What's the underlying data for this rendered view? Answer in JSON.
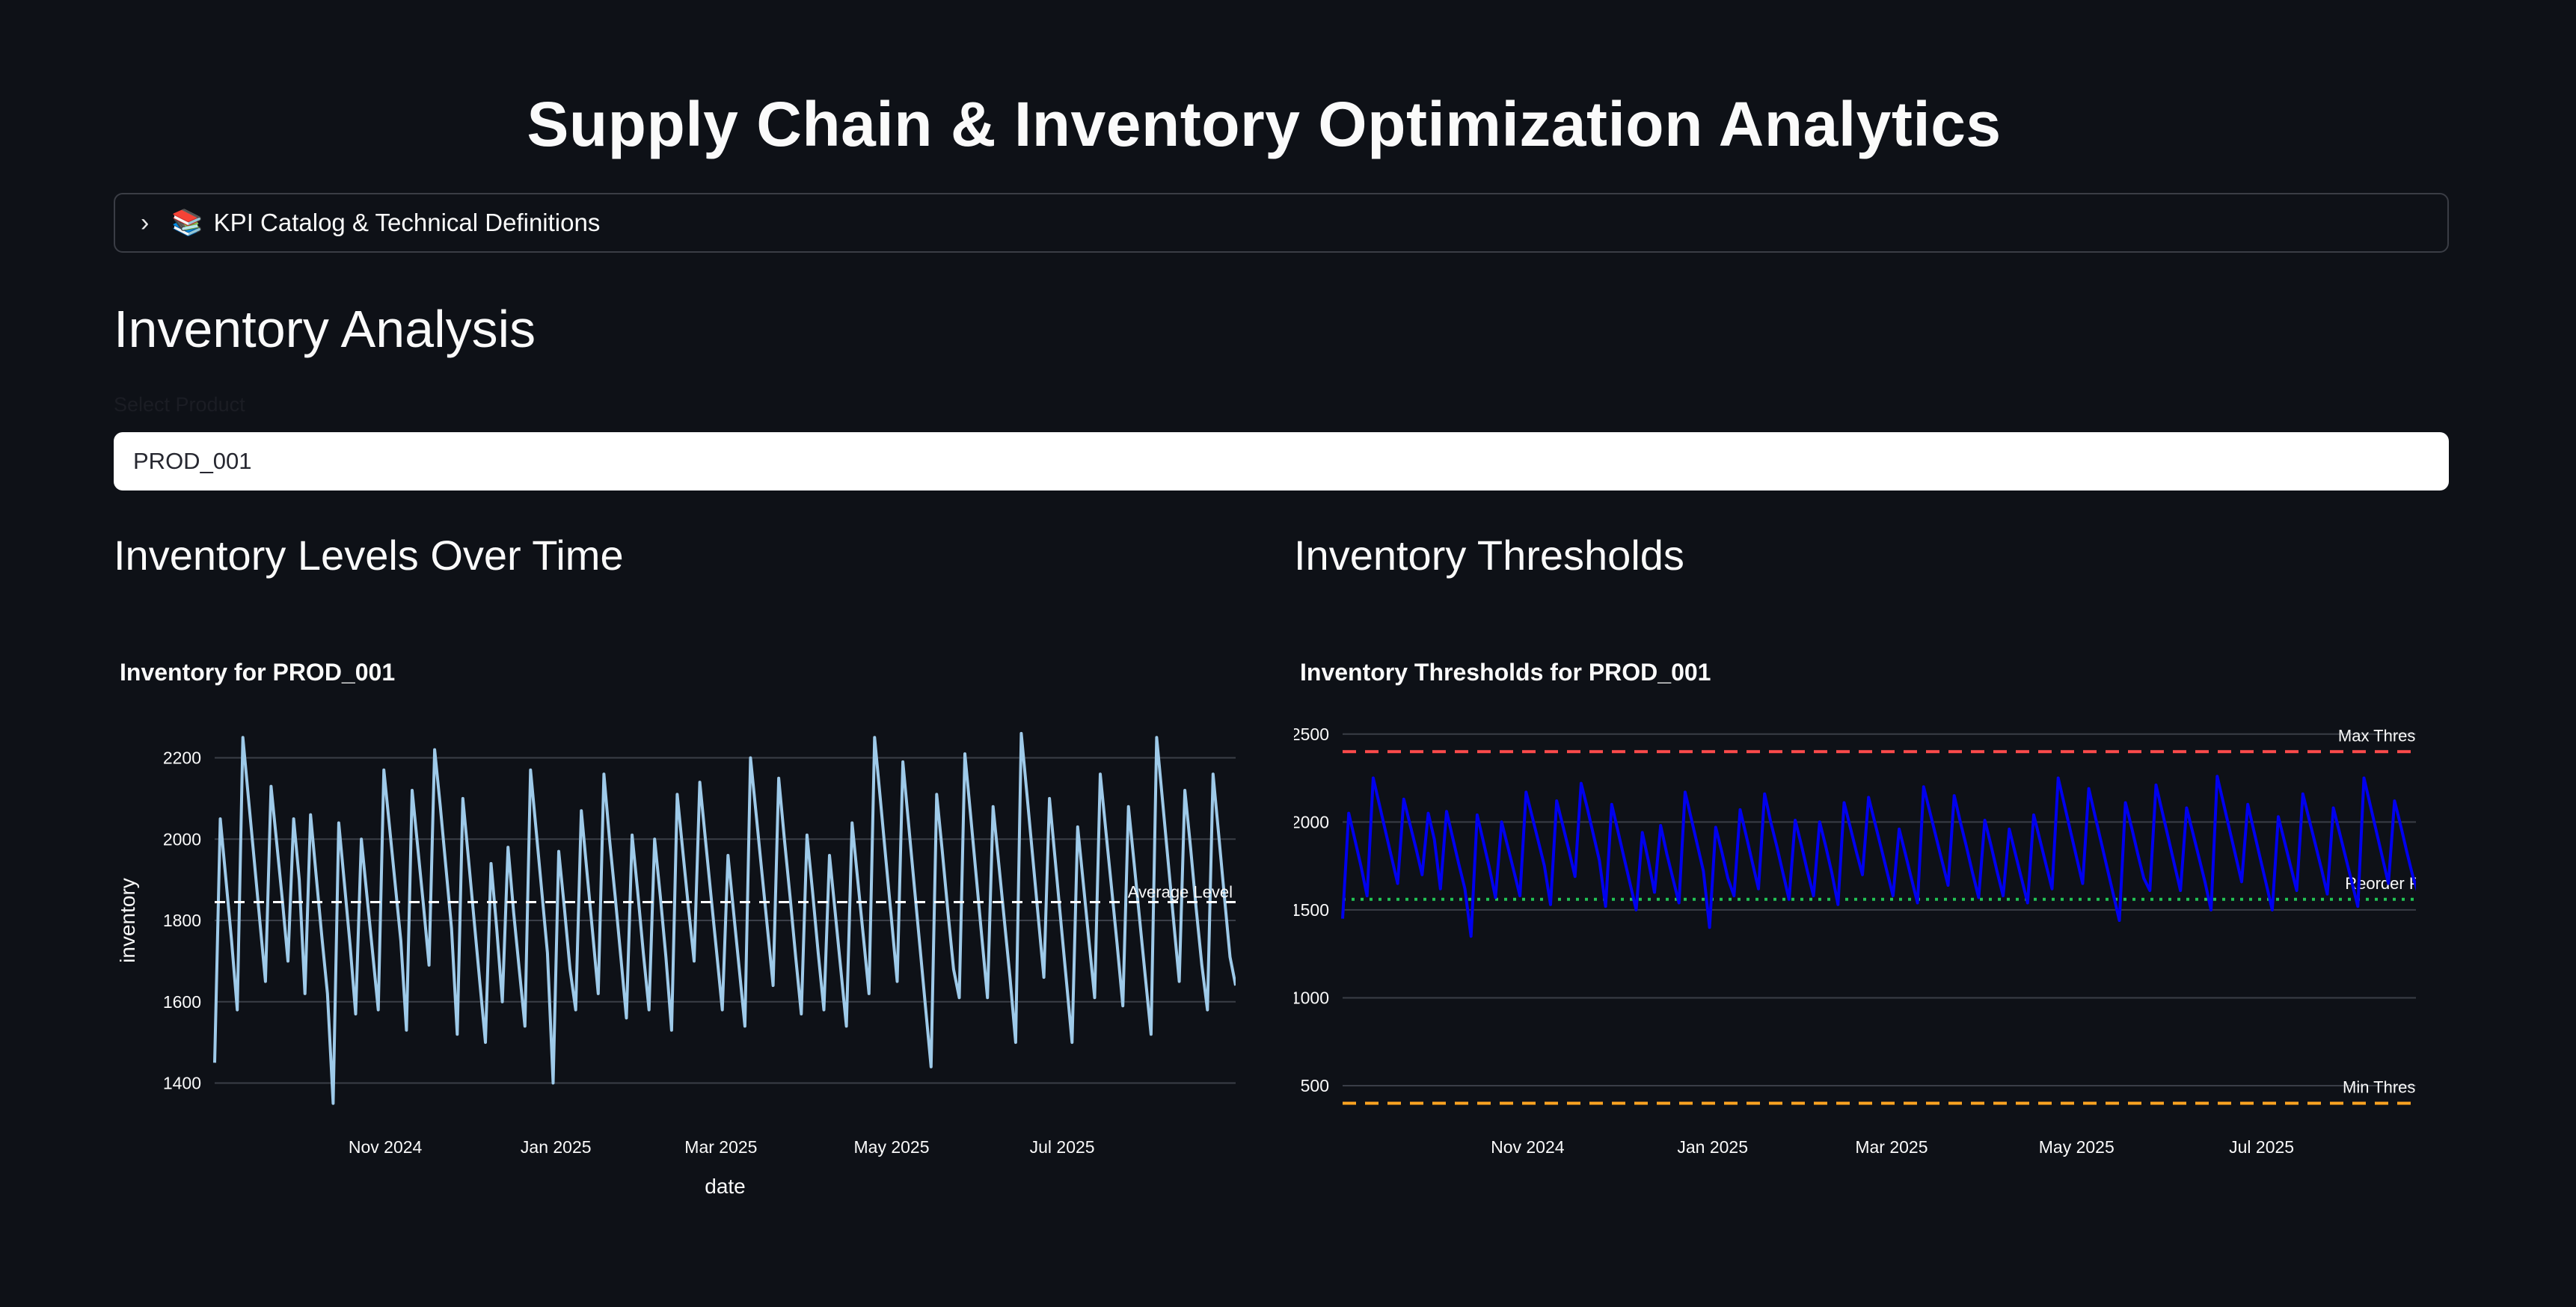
{
  "page": {
    "title": "Supply Chain & Inventory Optimization Analytics",
    "expander_icon": "books-icon",
    "expander_label": "KPI Catalog & Technical Definitions",
    "section_title": "Inventory Analysis",
    "select_label": "Select Product",
    "select_value": "PROD_001",
    "left_column_title": "Inventory Levels Over Time",
    "right_column_title": "Inventory Thresholds"
  },
  "chart_data": [
    {
      "type": "line",
      "title": "Inventory for PROD_001",
      "xlabel": "date",
      "ylabel": "inventory",
      "x_range": [
        "2024-09-01",
        "2025-09-01"
      ],
      "x_ticks": [
        "Nov 2024",
        "Jan 2025",
        "Mar 2025",
        "May 2025",
        "Jul 2025"
      ],
      "x_tick_dates": [
        "2024-11-01",
        "2025-01-01",
        "2025-03-01",
        "2025-05-01",
        "2025-07-01"
      ],
      "ylim": [
        1320,
        2280
      ],
      "y_ticks": [
        1400,
        1600,
        1800,
        2000,
        2200
      ],
      "grid": true,
      "series_color": "#9ecae9",
      "annotation": {
        "label": "Average Level",
        "value": 1845,
        "color": "#ffffff"
      },
      "series": [
        {
          "values": [
            1450,
            2050,
            1900,
            1750,
            1580,
            2250,
            2100,
            1950,
            1800,
            1650,
            2130,
            1990,
            1850,
            1700,
            2050,
            1900,
            1620,
            2060,
            1910,
            1760,
            1620,
            1350,
            2040,
            1890,
            1740,
            1570,
            2000,
            1860,
            1720,
            1580,
            2170,
            2030,
            1890,
            1750,
            1530,
            2120,
            1980,
            1840,
            1690,
            2220,
            2080,
            1930,
            1780,
            1520,
            2100,
            1950,
            1800,
            1650,
            1500,
            1940,
            1780,
            1600,
            1980,
            1820,
            1680,
            1540,
            2170,
            2020,
            1870,
            1720,
            1400,
            1970,
            1830,
            1680,
            1580,
            2070,
            1920,
            1770,
            1620,
            2160,
            2000,
            1860,
            1710,
            1560,
            2010,
            1870,
            1720,
            1580,
            2000,
            1860,
            1710,
            1530,
            2110,
            1970,
            1830,
            1700,
            2140,
            2000,
            1860,
            1720,
            1580,
            1960,
            1820,
            1680,
            1540,
            2200,
            2060,
            1920,
            1780,
            1640,
            2150,
            2000,
            1860,
            1710,
            1570,
            2010,
            1870,
            1720,
            1580,
            1960,
            1820,
            1680,
            1540,
            2040,
            1900,
            1760,
            1620,
            2250,
            2100,
            1950,
            1800,
            1650,
            2190,
            2040,
            1890,
            1740,
            1590,
            1440,
            2110,
            1970,
            1820,
            1680,
            1610,
            2210,
            2060,
            1910,
            1760,
            1610,
            2080,
            1940,
            1800,
            1660,
            1500,
            2260,
            2110,
            1960,
            1810,
            1660,
            2100,
            1950,
            1800,
            1650,
            1500,
            2030,
            1890,
            1750,
            1610,
            2160,
            2020,
            1880,
            1740,
            1590,
            2080,
            1940,
            1800,
            1660,
            1520,
            2250,
            2100,
            1950,
            1800,
            1650,
            2120,
            1980,
            1830,
            1690,
            1580,
            2160,
            2010,
            1860,
            1710,
            1640
          ]
        }
      ]
    },
    {
      "type": "line",
      "title": "Inventory Thresholds for PROD_001",
      "xlabel": "",
      "ylabel": "",
      "x_range": [
        "2024-09-01",
        "2025-09-01"
      ],
      "x_ticks": [
        "Nov 2024",
        "Jan 2025",
        "Mar 2025",
        "May 2025",
        "Jul 2025"
      ],
      "x_tick_dates": [
        "2024-11-01",
        "2025-01-01",
        "2025-03-01",
        "2025-05-01",
        "2025-07-01"
      ],
      "ylim": [
        330,
        2550
      ],
      "y_ticks": [
        500,
        1000,
        1500,
        2000,
        2500
      ],
      "grid": true,
      "series_color": "#0000ee",
      "thresholds": [
        {
          "label": "Max Threshold",
          "value": 2400,
          "color": "#ff4b4b",
          "dash": "long"
        },
        {
          "label": "Reorder Point",
          "value": 1560,
          "color": "#21c354",
          "dash": "dot"
        },
        {
          "label": "Min Threshold",
          "value": 400,
          "color": "#ffa421",
          "dash": "long"
        }
      ],
      "series": [
        {
          "values": [
            1450,
            2050,
            1900,
            1750,
            1580,
            2250,
            2100,
            1950,
            1800,
            1650,
            2130,
            1990,
            1850,
            1700,
            2050,
            1900,
            1620,
            2060,
            1910,
            1760,
            1620,
            1350,
            2040,
            1890,
            1740,
            1570,
            2000,
            1860,
            1720,
            1580,
            2170,
            2030,
            1890,
            1750,
            1530,
            2120,
            1980,
            1840,
            1690,
            2220,
            2080,
            1930,
            1780,
            1520,
            2100,
            1950,
            1800,
            1650,
            1500,
            1940,
            1780,
            1600,
            1980,
            1820,
            1680,
            1540,
            2170,
            2020,
            1870,
            1720,
            1400,
            1970,
            1830,
            1680,
            1580,
            2070,
            1920,
            1770,
            1620,
            2160,
            2000,
            1860,
            1710,
            1560,
            2010,
            1870,
            1720,
            1580,
            2000,
            1860,
            1710,
            1530,
            2110,
            1970,
            1830,
            1700,
            2140,
            2000,
            1860,
            1720,
            1580,
            1960,
            1820,
            1680,
            1540,
            2200,
            2060,
            1920,
            1780,
            1640,
            2150,
            2000,
            1860,
            1710,
            1570,
            2010,
            1870,
            1720,
            1580,
            1960,
            1820,
            1680,
            1540,
            2040,
            1900,
            1760,
            1620,
            2250,
            2100,
            1950,
            1800,
            1650,
            2190,
            2040,
            1890,
            1740,
            1590,
            1440,
            2110,
            1970,
            1820,
            1680,
            1610,
            2210,
            2060,
            1910,
            1760,
            1610,
            2080,
            1940,
            1800,
            1660,
            1500,
            2260,
            2110,
            1960,
            1810,
            1660,
            2100,
            1950,
            1800,
            1650,
            1500,
            2030,
            1890,
            1750,
            1610,
            2160,
            2020,
            1880,
            1740,
            1590,
            2080,
            1940,
            1800,
            1660,
            1520,
            2250,
            2100,
            1950,
            1800,
            1650,
            2120,
            1980,
            1830,
            1690,
            1580,
            2160,
            2010,
            1860,
            1710,
            1640
          ]
        }
      ]
    }
  ]
}
